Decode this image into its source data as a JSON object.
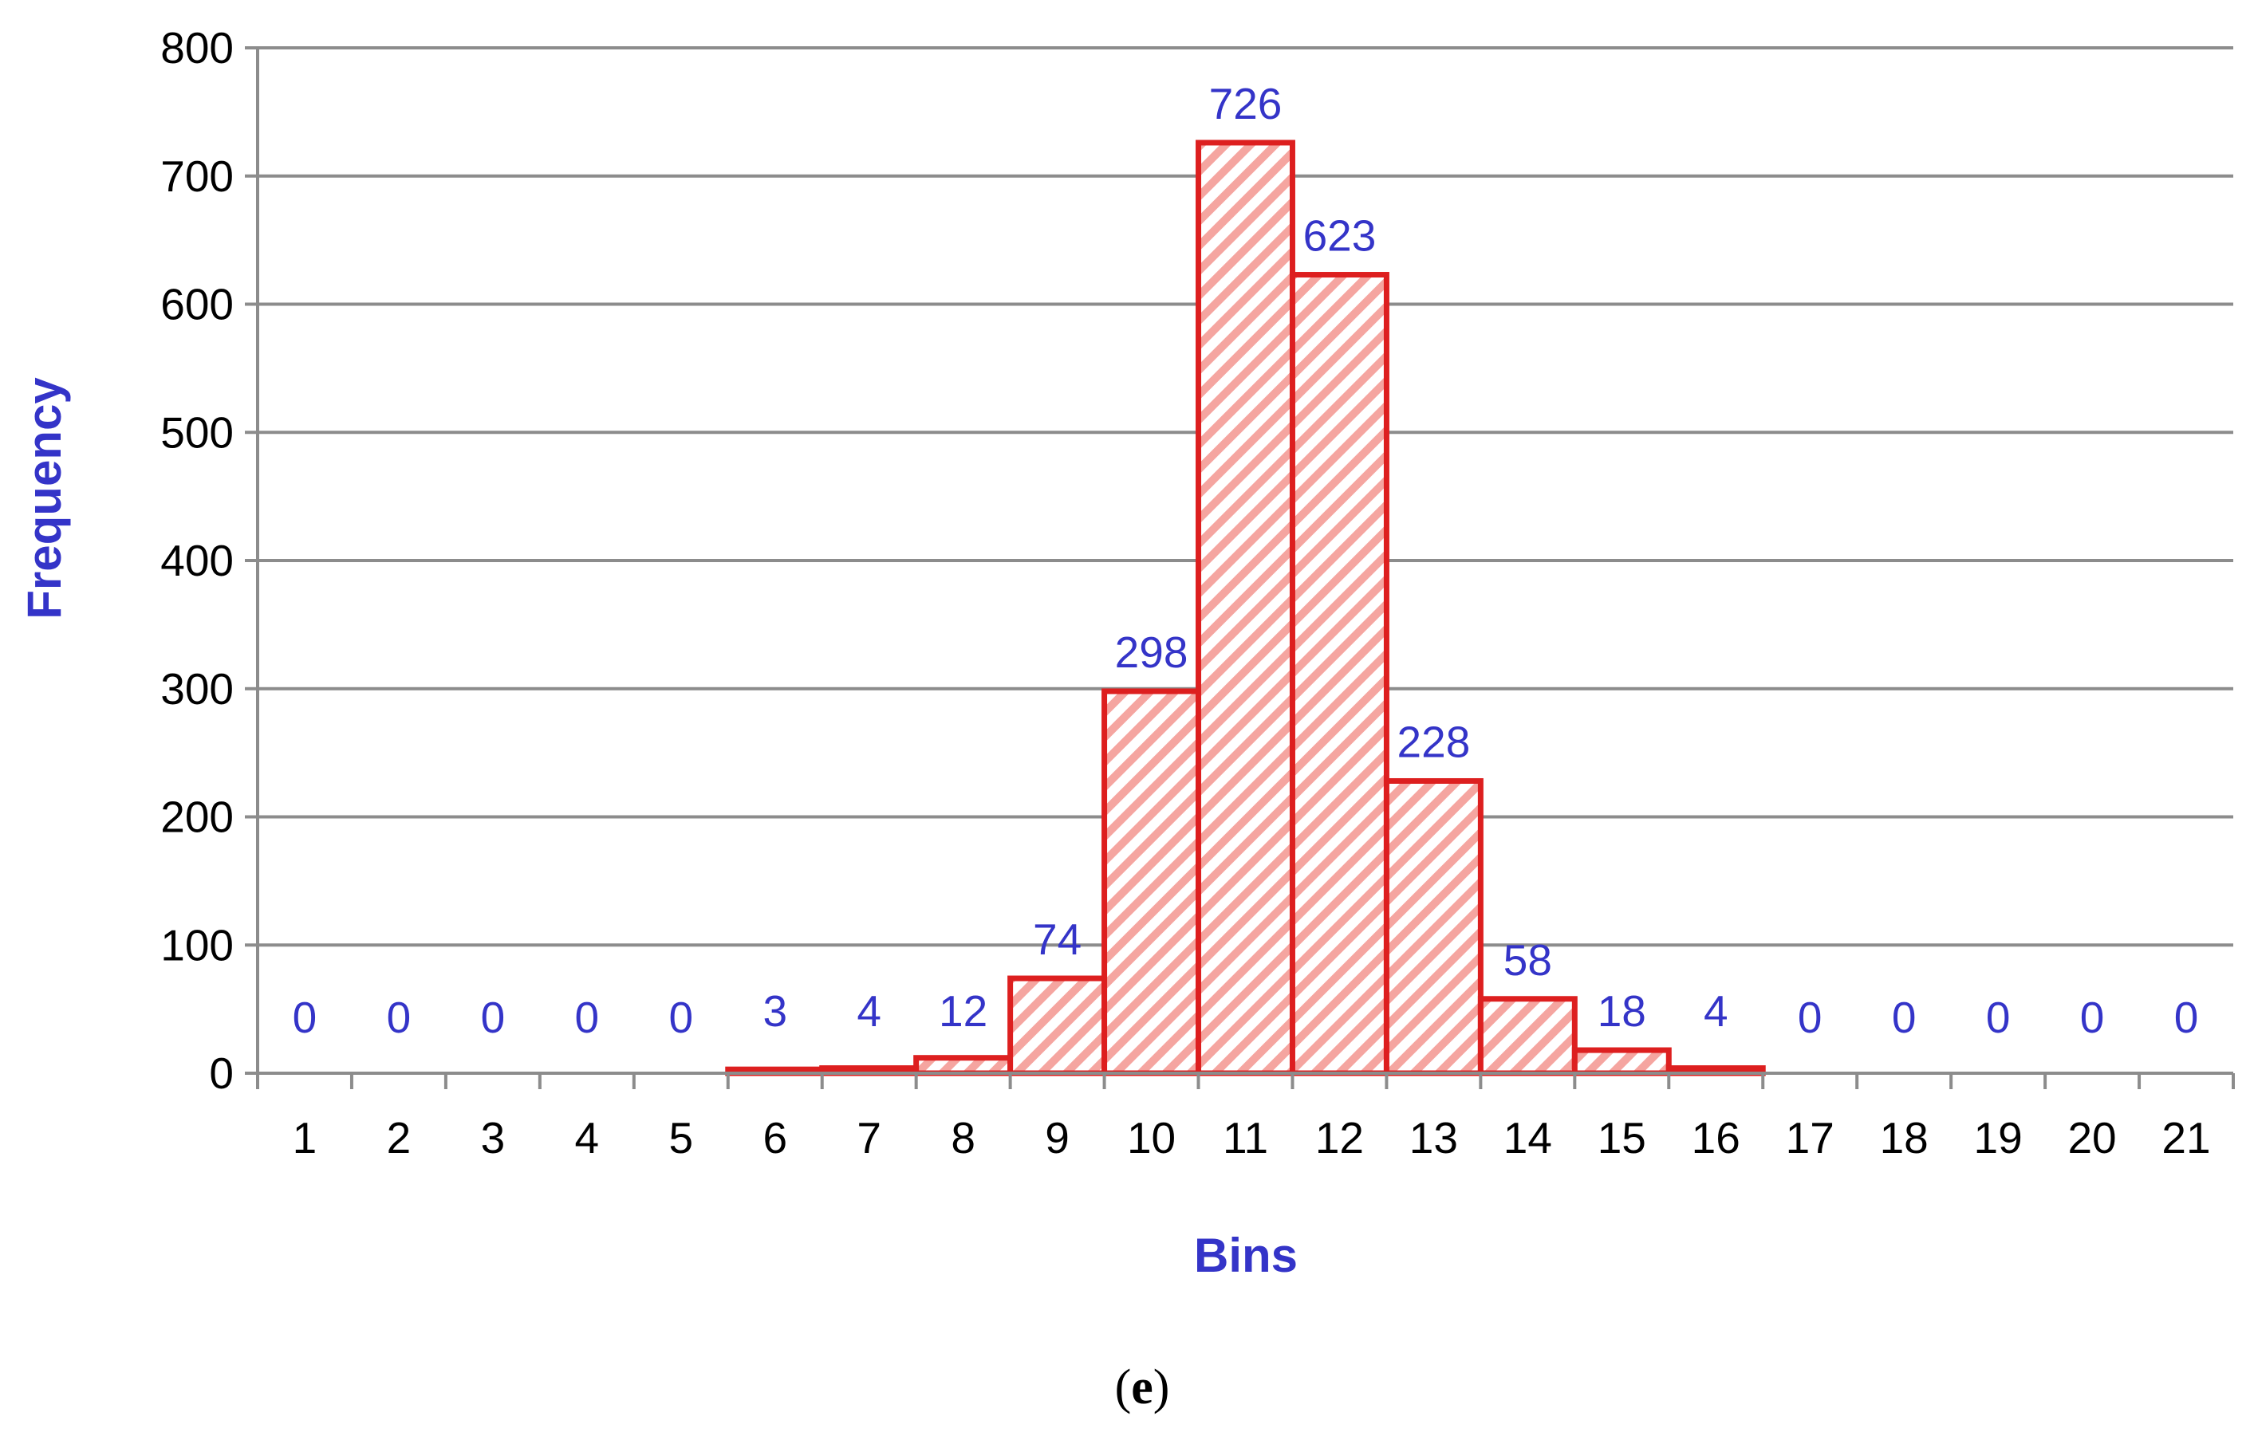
{
  "colors": {
    "bar_stroke": "#dd1f1f",
    "bar_hatch": "#f5a5a0",
    "label_blue": "#3434c8",
    "gridline": "#8c8c8c"
  },
  "caption": {
    "open": "(",
    "letter": "e",
    "close": ")"
  },
  "chart_data": {
    "type": "bar",
    "title": "",
    "xlabel": "Bins",
    "ylabel": "Frequency",
    "categories": [
      "1",
      "2",
      "3",
      "4",
      "5",
      "6",
      "7",
      "8",
      "9",
      "10",
      "11",
      "12",
      "13",
      "14",
      "15",
      "16",
      "17",
      "18",
      "19",
      "20",
      "21"
    ],
    "values": [
      0,
      0,
      0,
      0,
      0,
      3,
      4,
      12,
      74,
      298,
      726,
      623,
      228,
      58,
      18,
      4,
      0,
      0,
      0,
      0,
      0
    ],
    "ylim": [
      0,
      800
    ],
    "yticks": [
      0,
      100,
      200,
      300,
      400,
      500,
      600,
      700,
      800
    ],
    "grid": true,
    "legend": "none",
    "data_labels": true,
    "bar_fill": "diagonal-hatch"
  }
}
